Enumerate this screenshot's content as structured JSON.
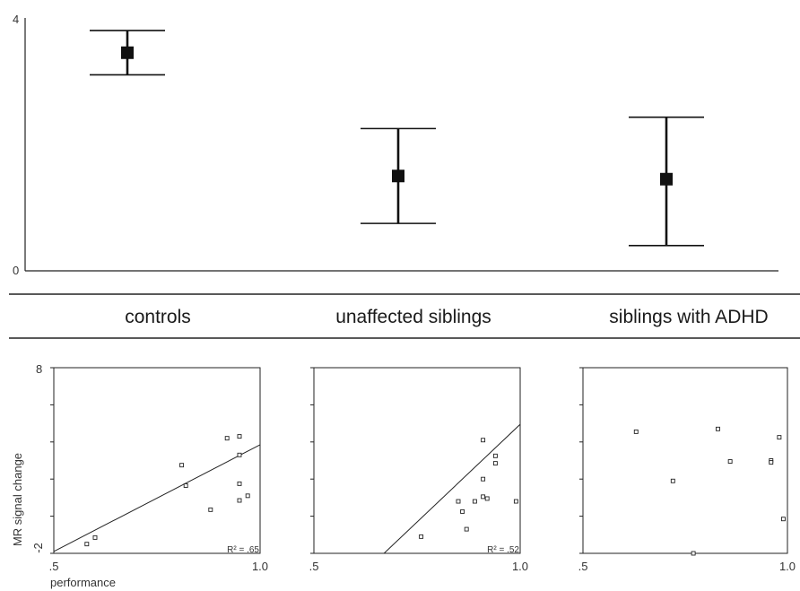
{
  "chart_data": [
    {
      "type": "errorbar",
      "ylim": [
        0,
        4
      ],
      "yticks": [
        "0",
        "4"
      ],
      "categories": [
        "controls",
        "unaffected siblings",
        "siblings with ADHD"
      ],
      "means": [
        3.45,
        1.5,
        1.45
      ],
      "ci_lower": [
        3.1,
        0.75,
        0.4
      ],
      "ci_upper": [
        3.8,
        2.25,
        2.43
      ]
    },
    {
      "type": "scatter",
      "panels": [
        {
          "group": "controls",
          "xlim": [
            0.5,
            1.0
          ],
          "ylim": [
            -2,
            8
          ],
          "xticks": [
            ".5",
            "1.0"
          ],
          "yticks": [
            "-2",
            "8"
          ],
          "xlabel": "performance",
          "ylabel": "MR signal change",
          "r2_label": "R² = .65",
          "points": [
            [
              0.58,
              -1.5
            ],
            [
              0.6,
              -1.15
            ],
            [
              0.81,
              2.75
            ],
            [
              0.82,
              1.65
            ],
            [
              0.88,
              0.35
            ],
            [
              0.92,
              4.2
            ],
            [
              0.95,
              4.3
            ],
            [
              0.95,
              3.3
            ],
            [
              0.95,
              1.75
            ],
            [
              0.95,
              0.85
            ],
            [
              0.97,
              1.1
            ]
          ],
          "fit": [
            [
              0.5,
              -1.9
            ],
            [
              1.0,
              3.85
            ]
          ]
        },
        {
          "group": "unaffected siblings",
          "xlim": [
            0.5,
            1.0
          ],
          "ylim": [
            -2,
            8
          ],
          "xticks": [
            ".5",
            "1.0"
          ],
          "r2_label": "R² = .52",
          "points": [
            [
              0.76,
              -1.1
            ],
            [
              0.85,
              0.8
            ],
            [
              0.86,
              0.25
            ],
            [
              0.87,
              -0.7
            ],
            [
              0.89,
              0.8
            ],
            [
              0.91,
              4.1
            ],
            [
              0.91,
              2.0
            ],
            [
              0.91,
              1.05
            ],
            [
              0.92,
              0.95
            ],
            [
              0.94,
              3.25
            ],
            [
              0.94,
              2.85
            ],
            [
              0.99,
              0.8
            ]
          ],
          "fit": [
            [
              0.67,
              -2
            ],
            [
              1.0,
              4.95
            ]
          ]
        },
        {
          "group": "siblings with ADHD",
          "xlim": [
            0.5,
            1.0
          ],
          "ylim": [
            -2,
            8
          ],
          "xticks": [
            ".5",
            "1.0"
          ],
          "points": [
            [
              0.63,
              4.55
            ],
            [
              0.72,
              1.9
            ],
            [
              0.77,
              -2.0
            ],
            [
              0.83,
              4.7
            ],
            [
              0.86,
              2.95
            ],
            [
              0.96,
              3.0
            ],
            [
              0.96,
              2.9
            ],
            [
              0.98,
              4.25
            ],
            [
              0.99,
              -0.15
            ]
          ]
        }
      ]
    }
  ]
}
